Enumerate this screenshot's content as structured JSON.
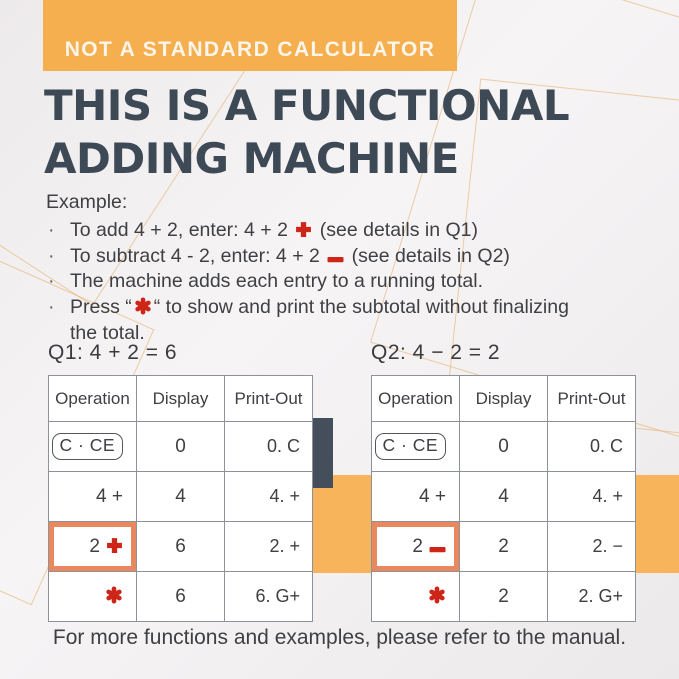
{
  "colors": {
    "accent_orange": "#F6AF4F",
    "band_orange": "#F8B45B",
    "icon_red": "#CE2519",
    "title_slate": "#3E4956",
    "dark_block": "#454F5B",
    "highlight_border": "#E9875F",
    "table_border": "#8D9298"
  },
  "banner": {
    "label": "NOT A STANDARD CALCULATOR"
  },
  "title": {
    "line1": "THIS IS A FUNCTIONAL",
    "line2": "ADDING MACHINE"
  },
  "example": {
    "heading": "Example:",
    "marker": "·",
    "bullets": [
      {
        "segments": [
          {
            "text": "To add 4 + 2, enter: 4 + 2 "
          },
          {
            "icon": "plus"
          },
          {
            "text": "  (see details in Q1)"
          }
        ]
      },
      {
        "segments": [
          {
            "text": "To subtract 4 - 2, enter: 4 + 2 "
          },
          {
            "icon": "minus"
          },
          {
            "text": " (see details in Q2)"
          }
        ]
      },
      {
        "segments": [
          {
            "text": "The machine adds each entry to a running total."
          }
        ]
      },
      {
        "segments": [
          {
            "text": "Press “"
          },
          {
            "icon": "asterisk"
          },
          {
            "text": "“ to show and print the subtotal without finalizing the total."
          }
        ]
      }
    ]
  },
  "tables": [
    {
      "caption": "Q1: 4 + 2 = 6",
      "headers": [
        "Operation",
        "Display",
        "Print-Out"
      ],
      "rows": [
        {
          "operation": {
            "label": "C · CE",
            "style": "keycap"
          },
          "display": "0",
          "printout": "0. C"
        },
        {
          "operation": {
            "label": "4  +"
          },
          "display": "4",
          "printout": "4. +"
        },
        {
          "operation": {
            "label": "2",
            "icon": "plus",
            "highlight": true
          },
          "display": "6",
          "printout": "2. +"
        },
        {
          "operation": {
            "icon": "asterisk"
          },
          "display": "6",
          "printout": "6. G+"
        }
      ]
    },
    {
      "caption": "Q2: 4 − 2 = 2",
      "headers": [
        "Operation",
        "Display",
        "Print-Out"
      ],
      "rows": [
        {
          "operation": {
            "label": "C · CE",
            "style": "keycap"
          },
          "display": "0",
          "printout": "0. C"
        },
        {
          "operation": {
            "label": "4  +"
          },
          "display": "4",
          "printout": "4. +"
        },
        {
          "operation": {
            "label": "2",
            "icon": "minus",
            "highlight": true
          },
          "display": "2",
          "printout": "2. −"
        },
        {
          "operation": {
            "icon": "asterisk"
          },
          "display": "2",
          "printout": "2. G+"
        }
      ]
    }
  ],
  "footer": {
    "text": "For more functions and examples, please refer to the manual."
  }
}
